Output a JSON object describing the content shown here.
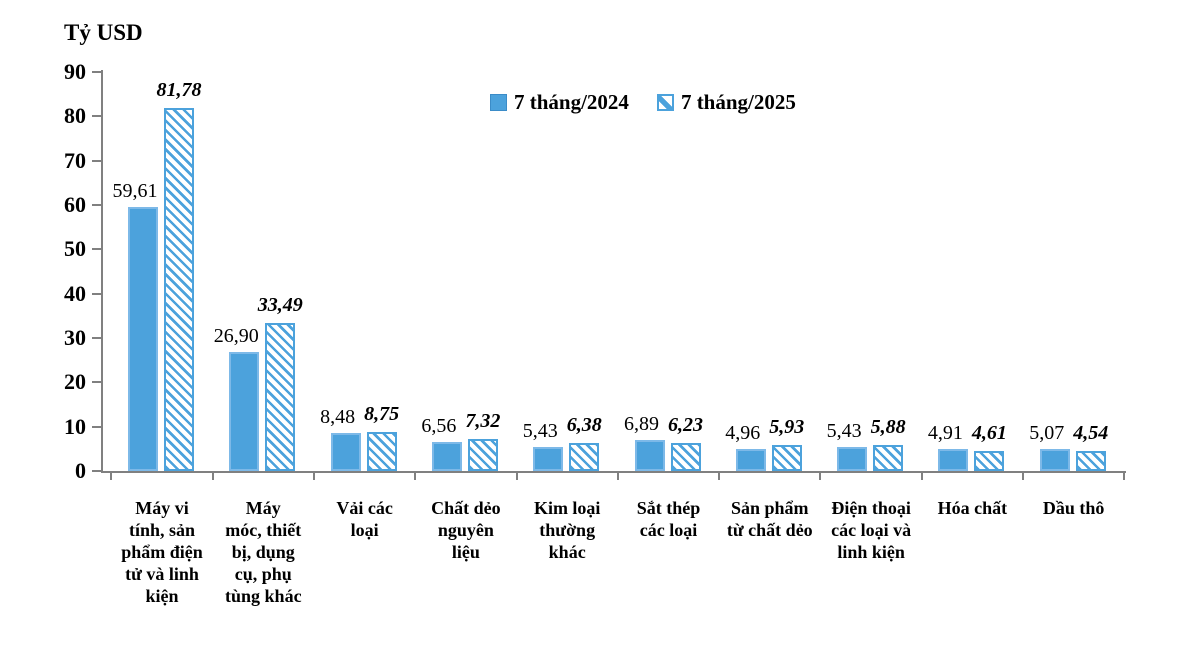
{
  "unit_label": "Tỷ USD",
  "legend": {
    "items": [
      {
        "label": "7 tháng/2024",
        "style": "solid"
      },
      {
        "label": "7 tháng/2025",
        "style": "hatched"
      }
    ]
  },
  "colors": {
    "bar_fill": "#4CA2DC",
    "bar_border_light": "#7DB9E8",
    "hatch_stripe": "#4CA2DC",
    "axis": "#808080",
    "text": "#000000",
    "background": "#FFFFFF"
  },
  "chart_data": {
    "type": "bar",
    "title": "Tỷ USD",
    "ylabel": "Tỷ USD",
    "xlabel": "",
    "ylim": [
      0,
      90
    ],
    "yticks": [
      0,
      10,
      20,
      30,
      40,
      50,
      60,
      70,
      80,
      90
    ],
    "grid": false,
    "legend_position": "top-center",
    "categories": [
      "Máy vi tính, sản phẩm điện tử và linh kiện",
      "Máy móc, thiết bị, dụng cụ, phụ tùng khác",
      "Vải các loại",
      "Chất dẻo nguyên liệu",
      "Kim loại thường khác",
      "Sắt thép các loại",
      "Sản phẩm từ chất dẻo",
      "Điện thoại các loại và linh kiện",
      "Hóa chất",
      "Dầu thô"
    ],
    "category_lines": [
      [
        "Máy vi",
        "tính, sản",
        "phẩm điện",
        "tử và linh",
        "kiện"
      ],
      [
        "Máy",
        "móc, thiết",
        "bị, dụng",
        "cụ, phụ",
        "tùng khác"
      ],
      [
        "Vải các",
        "loại"
      ],
      [
        "Chất dẻo",
        "nguyên",
        "liệu"
      ],
      [
        "Kim loại",
        "thường",
        "khác"
      ],
      [
        "Sắt thép",
        "các loại"
      ],
      [
        "Sản phẩm",
        "từ chất dẻo"
      ],
      [
        "Điện thoại",
        "các loại và",
        "linh kiện"
      ],
      [
        "Hóa chất"
      ],
      [
        "Dầu thô"
      ]
    ],
    "series": [
      {
        "name": "7 tháng/2024",
        "style": "solid",
        "values": [
          59.61,
          26.9,
          8.48,
          6.56,
          5.43,
          6.89,
          4.96,
          5.43,
          4.91,
          5.07
        ],
        "labels": [
          "59,61",
          "26,90",
          "8,48",
          "6,56",
          "5,43",
          "6,89",
          "4,96",
          "5,43",
          "4,91",
          "5,07"
        ]
      },
      {
        "name": "7 tháng/2025",
        "style": "hatched-diagonal",
        "values": [
          81.78,
          33.49,
          8.75,
          7.32,
          6.38,
          6.23,
          5.93,
          5.88,
          4.61,
          4.54
        ],
        "labels": [
          "81,78",
          "33,49",
          "8,75",
          "7,32",
          "6,38",
          "6,23",
          "5,93",
          "5,88",
          "4,61",
          "4,54"
        ]
      }
    ]
  }
}
